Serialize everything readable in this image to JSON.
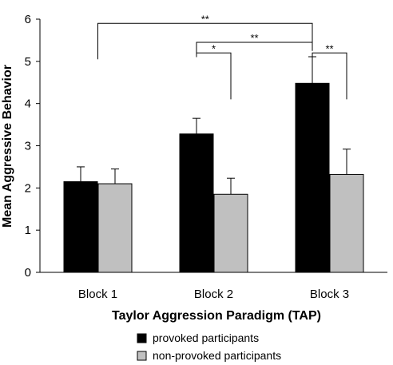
{
  "chart_data": {
    "type": "bar",
    "categories": [
      "Block 1",
      "Block 2",
      "Block 3"
    ],
    "series": [
      {
        "name": "provoked participants",
        "color": "#000000",
        "values": [
          2.15,
          3.28,
          4.48
        ],
        "errors": [
          0.35,
          0.37,
          0.63
        ]
      },
      {
        "name": "non-provoked participants",
        "color": "#c0c0c0",
        "values": [
          2.1,
          1.85,
          2.32
        ],
        "errors": [
          0.35,
          0.38,
          0.6
        ]
      }
    ],
    "xlabel": "Taylor Aggression Paradigm (TAP)",
    "ylabel": "Mean Aggressive Behavior",
    "ylim": [
      0,
      6
    ],
    "yticks": [
      "0",
      "1",
      "2",
      "3",
      "4",
      "5",
      "6"
    ],
    "grid": false,
    "legend_position": "bottom-right",
    "significance": [
      {
        "label": "**",
        "from": "Block 1",
        "to": "Block 3 provoked"
      },
      {
        "label": "**",
        "from": "Block 2 provoked",
        "to": "Block 3 provoked"
      },
      {
        "label": "*",
        "from": "Block 2 provoked",
        "to": "Block 2 non-provoked"
      },
      {
        "label": "**",
        "from": "Block 3 provoked",
        "to": "Block 3 non-provoked"
      }
    ]
  }
}
